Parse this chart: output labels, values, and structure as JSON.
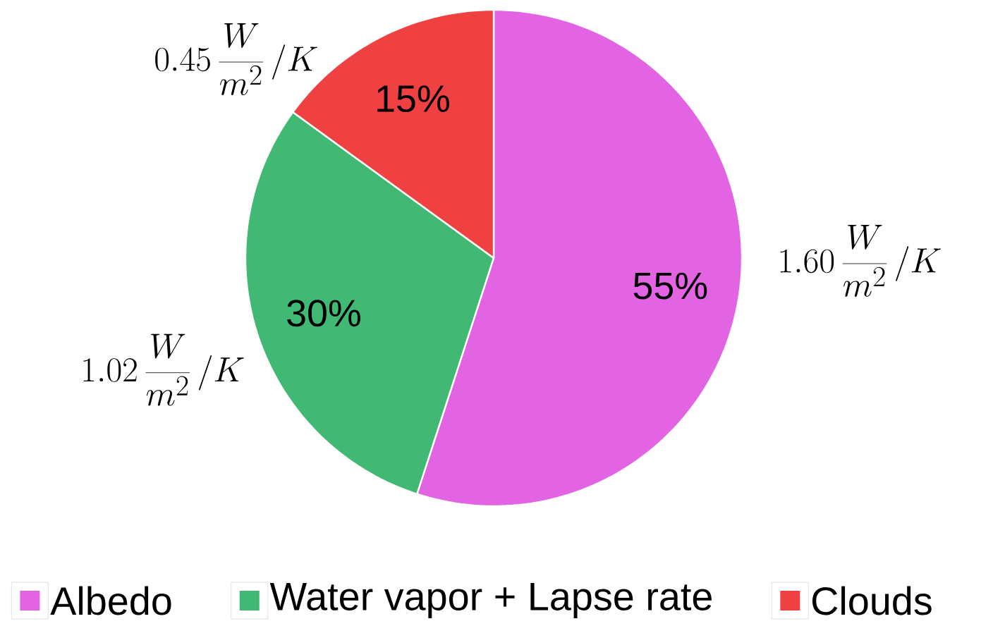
{
  "chart_data": {
    "type": "pie",
    "categories": [
      "Albedo",
      "Water vapor + Lapse rate",
      "Clouds"
    ],
    "values": [
      55,
      30,
      15
    ],
    "colors": [
      "#e264e2",
      "#41b974",
      "#ef4142"
    ],
    "value_labels": [
      "55%",
      "30%",
      "15%"
    ],
    "annotations": [
      "1.60\\,\\frac{W}{m^2}\\,/K",
      "1.02\\,\\frac{W}{m^2}\\,/K",
      "0.45\\,\\frac{W}{m^2}\\,/K"
    ],
    "legend": "bottom"
  }
}
